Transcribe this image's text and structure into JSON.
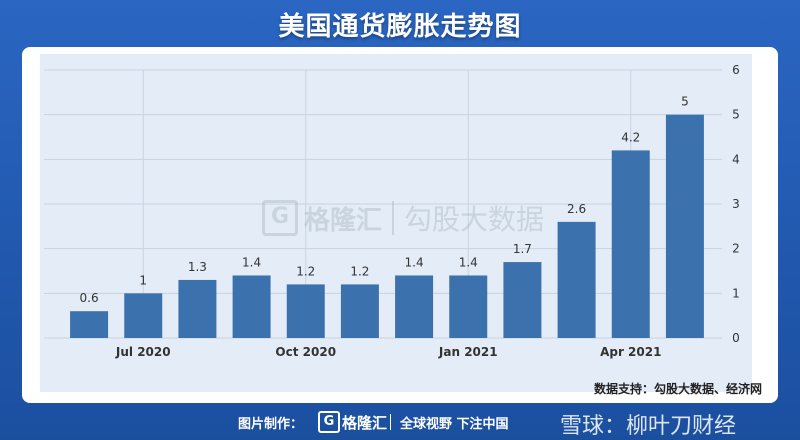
{
  "title": "美国通货膨胀走势图",
  "source": "数据支持：勾股大数据、经济网",
  "watermark": {
    "logo": "G",
    "brand": "格隆汇",
    "name": "勾股大数据"
  },
  "footer": {
    "credit": "图片制作：",
    "logo": "G",
    "brand": "格隆汇",
    "slogan": "全球视野 下注中国",
    "social": "雪球：柳叶刀财经"
  },
  "colors": {
    "bar": "#3b72ae",
    "plot_bg": "#e4edf7",
    "grid": "#c8d3e0",
    "frame": "#1d55a8"
  },
  "chart_data": {
    "type": "bar",
    "title": "美国通货膨胀走势图",
    "values": [
      0.6,
      1,
      1.3,
      1.4,
      1.2,
      1.2,
      1.4,
      1.4,
      1.7,
      2.6,
      4.2,
      5
    ],
    "value_labels": [
      "0.6",
      "1",
      "1.3",
      "1.4",
      "1.2",
      "1.2",
      "1.4",
      "1.4",
      "1.7",
      "2.6",
      "4.2",
      "5"
    ],
    "x_tick_labels": [
      {
        "index": 1,
        "label": "Jul 2020"
      },
      {
        "index": 4,
        "label": "Oct 2020"
      },
      {
        "index": 7,
        "label": "Jan 2021"
      },
      {
        "index": 10,
        "label": "Apr 2021"
      }
    ],
    "ylim": [
      0,
      6
    ],
    "y_ticks": [
      0,
      1,
      2,
      3,
      4,
      5,
      6
    ],
    "y_axis_side": "right",
    "grid": true,
    "xlabel": "",
    "ylabel": ""
  }
}
